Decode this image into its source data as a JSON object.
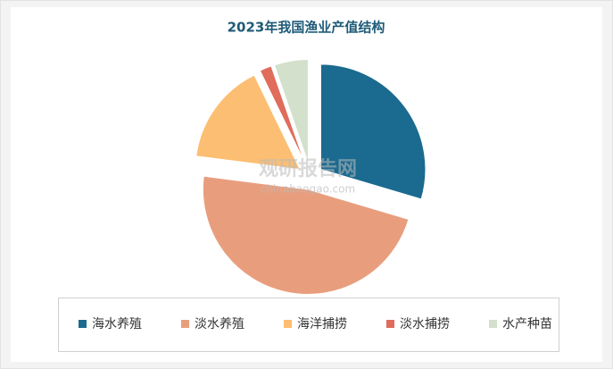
{
  "chart_data": {
    "type": "pie",
    "title": "2023年我国渔业产值结构",
    "categories": [
      "海水养殖",
      "淡水养殖",
      "海洋捕捞",
      "淡水捕捞",
      "水产种苗"
    ],
    "values": [
      29.6,
      47.4,
      15.8,
      1.9,
      5.3
    ],
    "colors": [
      "#1b6a8f",
      "#e89e7d",
      "#fcbe72",
      "#e06c5c",
      "#d2e0cc"
    ],
    "legend": "bottom",
    "watermark": [
      "观研报告网",
      "chinabaogao.com"
    ]
  }
}
